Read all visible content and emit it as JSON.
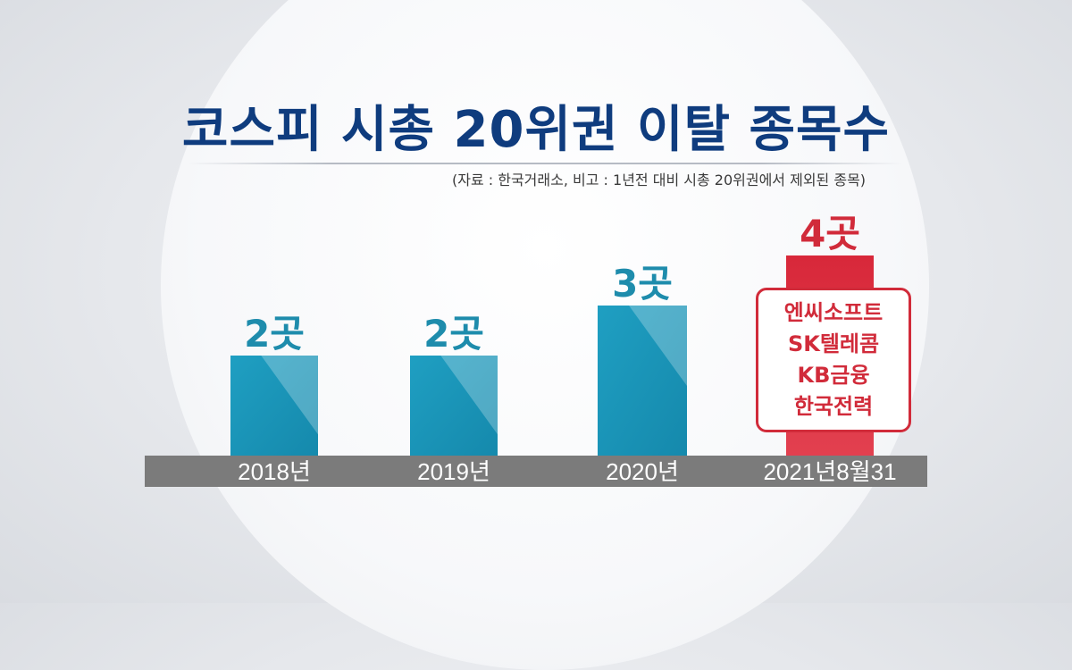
{
  "title": "코스피 시총 20위권 이탈 종목수",
  "source_note": "(자료 : 한국거래소, 비고 : 1년전 대비 시총 20위권에서 제외된 종목)",
  "chart_data": {
    "type": "bar",
    "categories": [
      "2018년",
      "2019년",
      "2020년",
      "2021년8월31"
    ],
    "values": [
      2,
      2,
      3,
      4
    ],
    "data_labels": [
      "2곳",
      "2곳",
      "3곳",
      "4곳"
    ],
    "ylim": [
      0,
      4.5
    ],
    "grid": false,
    "colors": {
      "bar": "#1a97b8",
      "bar_highlight": "#dd3343",
      "label_blue": "#1e8cac",
      "label_red": "#d12b3a",
      "axis_band": "#7b7b7b"
    }
  },
  "callout": {
    "items": [
      "엔씨소프트",
      "SK텔레콤",
      "KB금융",
      "한국전력"
    ]
  }
}
